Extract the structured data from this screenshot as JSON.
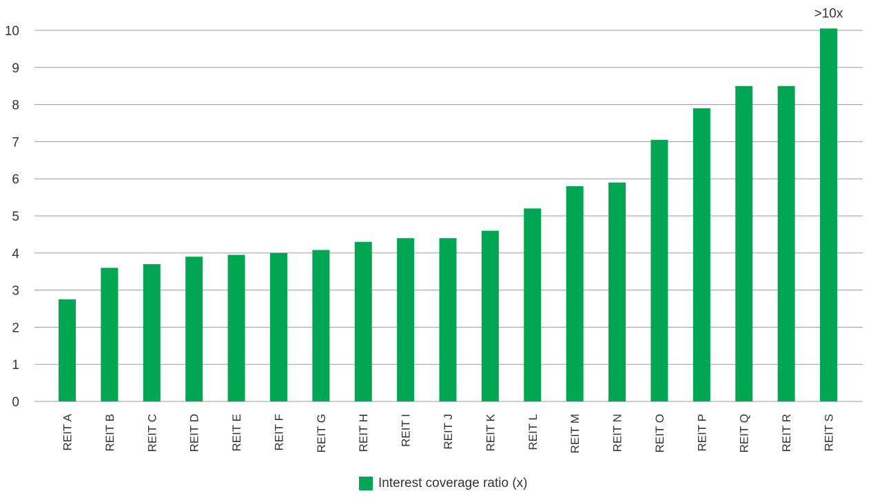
{
  "chart_data": {
    "type": "bar",
    "categories": [
      "REIT A",
      "REIT B",
      "REIT C",
      "REIT D",
      "REIT E",
      "REIT F",
      "REIT G",
      "REIT H",
      "REIT I",
      "REIT J",
      "REIT K",
      "REIT L",
      "REIT M",
      "REIT N",
      "REIT O",
      "REIT P",
      "REIT Q",
      "REIT R",
      "REIT S"
    ],
    "series": [
      {
        "name": "Interest coverage ratio (x)",
        "values": [
          2.75,
          3.6,
          3.7,
          3.9,
          3.95,
          4.0,
          4.08,
          4.3,
          4.4,
          4.4,
          4.6,
          5.2,
          5.8,
          5.9,
          7.05,
          7.9,
          8.5,
          8.5,
          10.05
        ]
      }
    ],
    "yticks": [
      0,
      1,
      2,
      3,
      4,
      5,
      6,
      7,
      8,
      9,
      10
    ],
    "ylim": [
      0,
      10
    ],
    "annotations": [
      {
        "category": "REIT S",
        "text": ">10x"
      }
    ],
    "grid": true,
    "legend_position": "bottom-center",
    "colors": {
      "bar": "#00a651",
      "grid": "#9a9a9a",
      "text": "#333333"
    }
  }
}
